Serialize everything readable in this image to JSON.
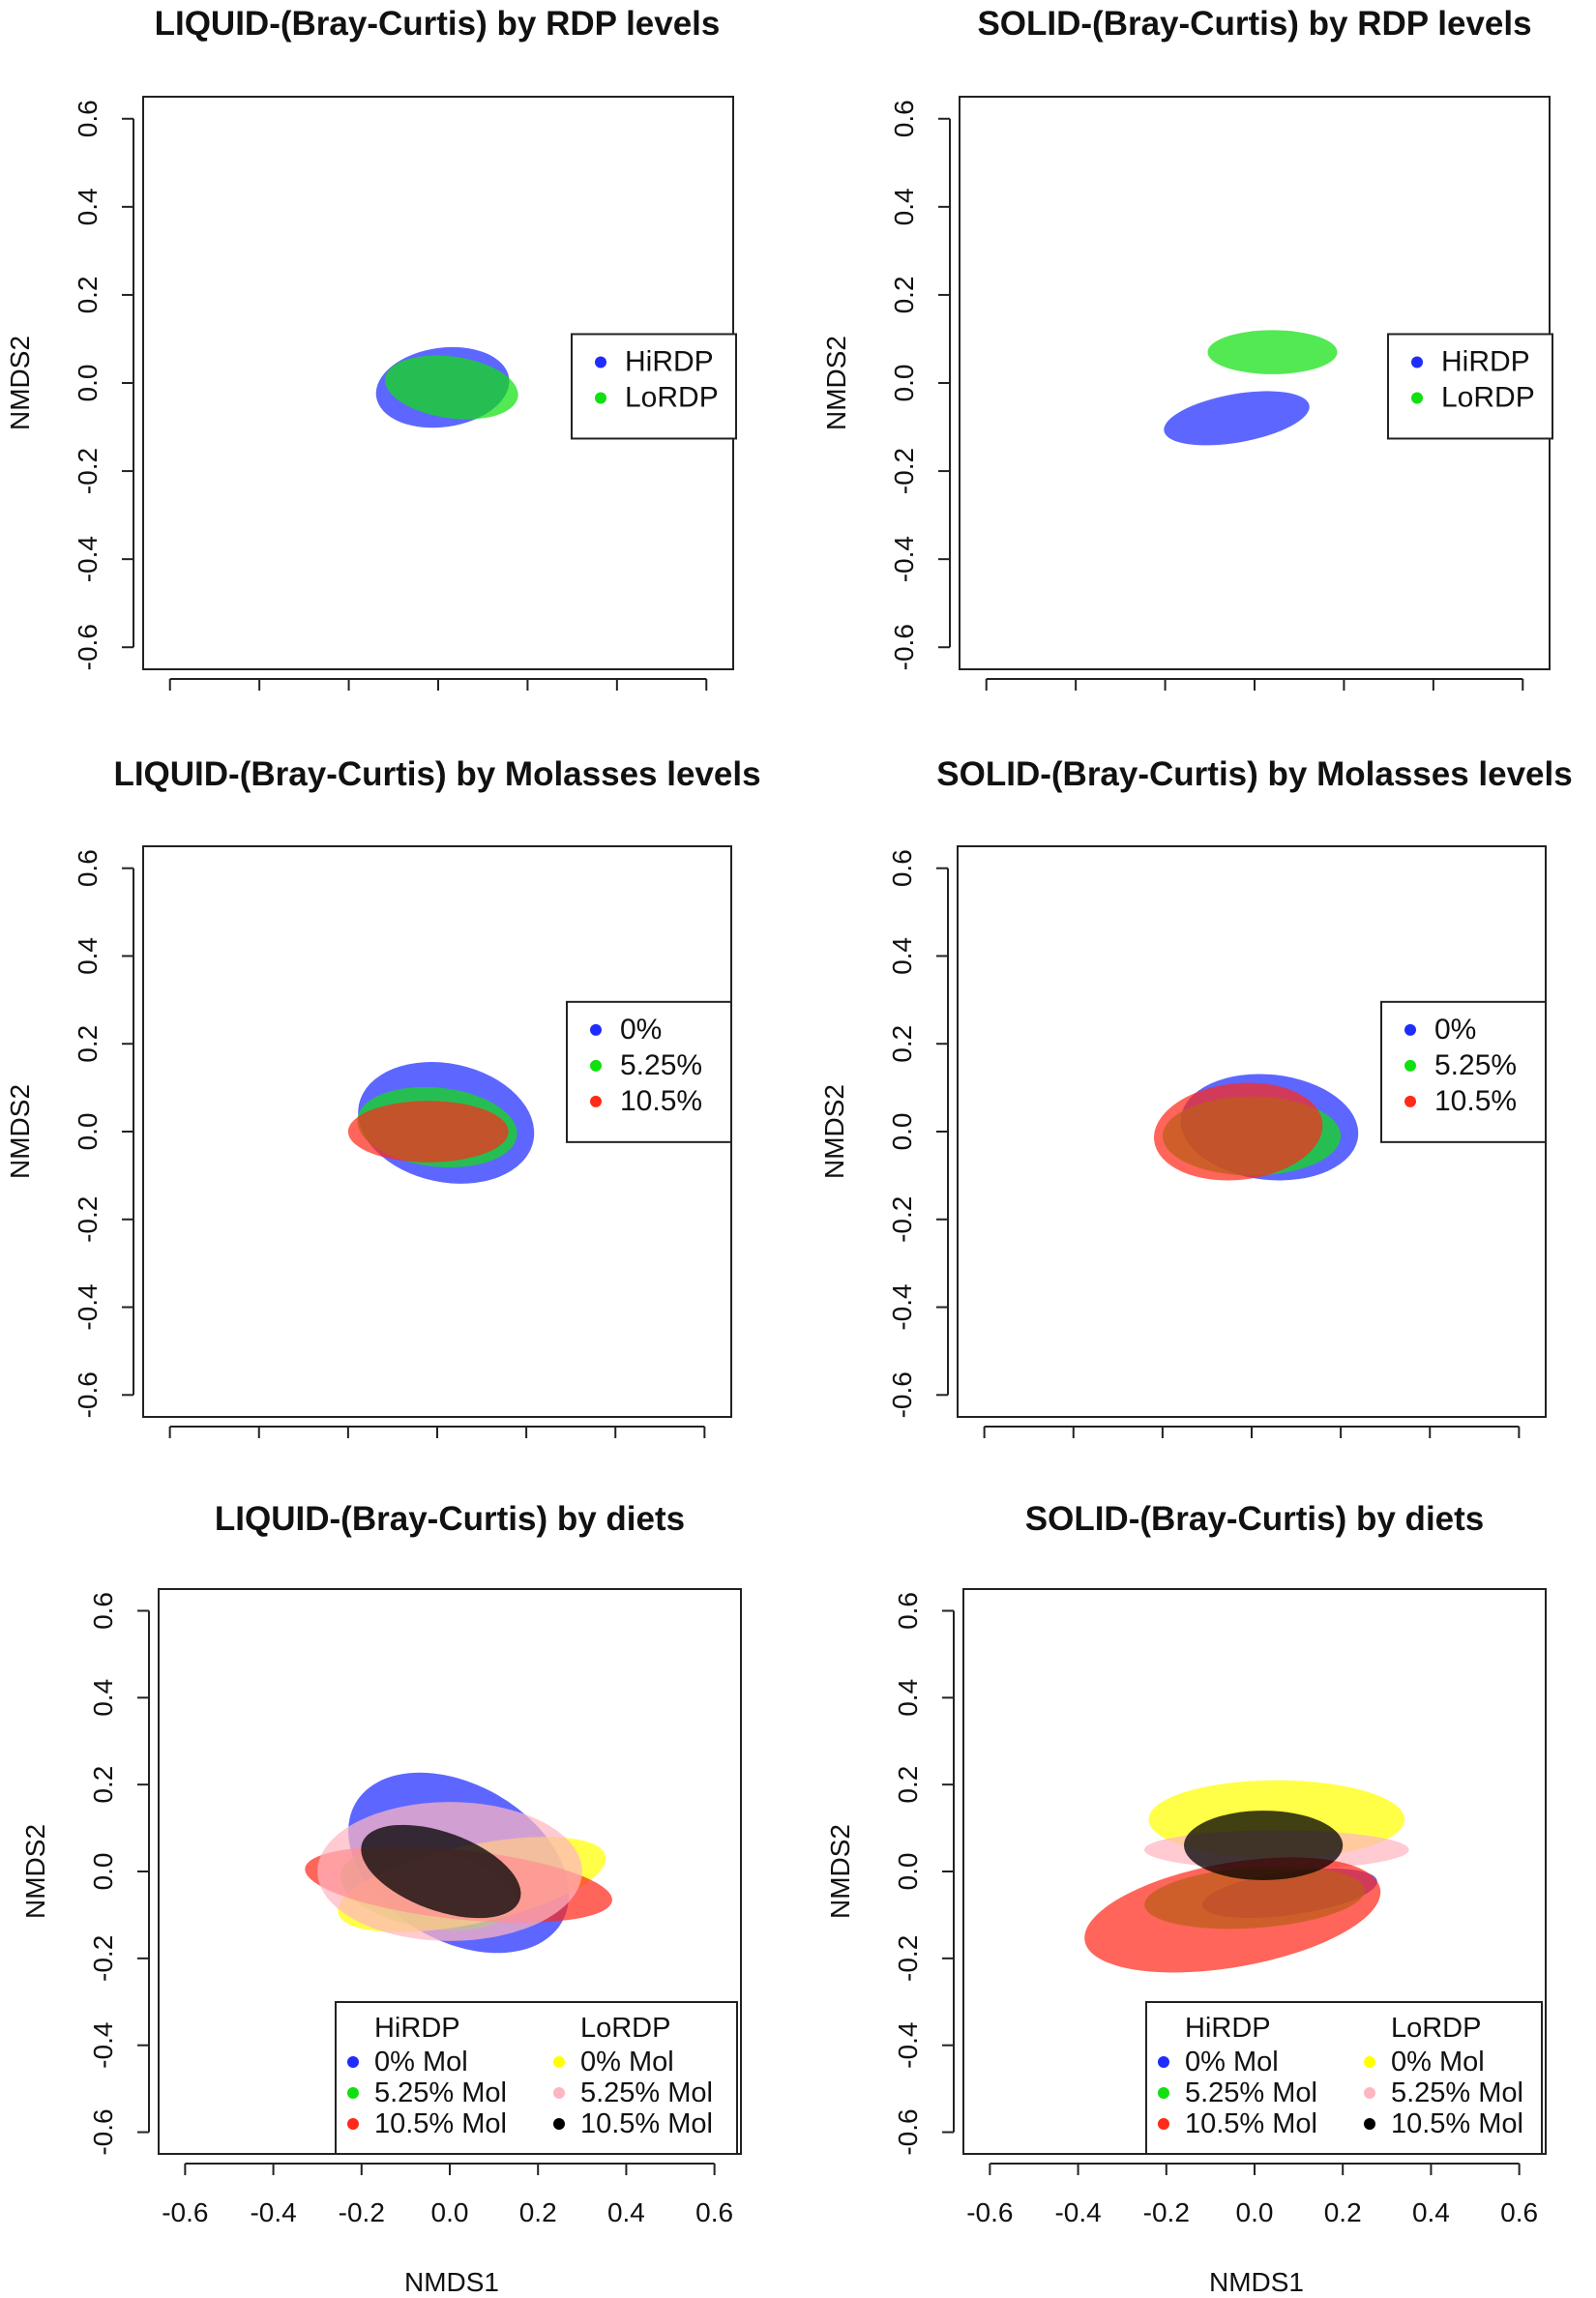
{
  "chart_data": [
    {
      "type": "scatter",
      "title": "LIQUID-(Bray-Curtis) by RDP levels",
      "xlabel": "",
      "ylabel": "NMDS2",
      "xlim": [
        -0.66,
        0.66
      ],
      "ylim": [
        -0.65,
        0.65
      ],
      "xticks": [
        -0.6,
        -0.4,
        -0.2,
        0.0,
        0.2,
        0.4,
        0.6
      ],
      "yticks": [
        "-0.6",
        "-0.4",
        "-0.2",
        "0.0",
        "0.2",
        "0.4",
        "0.6"
      ],
      "show_xtick_labels": false,
      "legend": [
        {
          "label": "HiRDP",
          "color": "#1f2cff"
        },
        {
          "label": "LoRDP",
          "color": "#10e010"
        }
      ],
      "ellipses": [
        {
          "group": "HiRDP",
          "color": "#1f2cff",
          "cx": 0.01,
          "cy": -0.01,
          "rx": 0.15,
          "ry": 0.09,
          "angle": 8
        },
        {
          "group": "LoRDP",
          "color": "#10e010",
          "cx": 0.03,
          "cy": -0.01,
          "rx": 0.15,
          "ry": 0.07,
          "angle": -8
        }
      ]
    },
    {
      "type": "scatter",
      "title": "SOLID-(Bray-Curtis) by RDP levels",
      "xlabel": "",
      "ylabel": "NMDS2",
      "xlim": [
        -0.66,
        0.66
      ],
      "ylim": [
        -0.65,
        0.65
      ],
      "xticks": [
        -0.6,
        -0.4,
        -0.2,
        0.0,
        0.2,
        0.4,
        0.6
      ],
      "yticks": [
        "-0.6",
        "-0.4",
        "-0.2",
        "0.0",
        "0.2",
        "0.4",
        "0.6"
      ],
      "show_xtick_labels": false,
      "legend": [
        {
          "label": "HiRDP",
          "color": "#1f2cff"
        },
        {
          "label": "LoRDP",
          "color": "#10e010"
        }
      ],
      "ellipses": [
        {
          "group": "HiRDP",
          "color": "#1f2cff",
          "cx": -0.04,
          "cy": -0.08,
          "rx": 0.165,
          "ry": 0.055,
          "angle": 10
        },
        {
          "group": "LoRDP",
          "color": "#10e010",
          "cx": 0.04,
          "cy": 0.07,
          "rx": 0.145,
          "ry": 0.05,
          "angle": 0
        }
      ]
    },
    {
      "type": "scatter",
      "title": "LIQUID-(Bray-Curtis) by Molasses levels",
      "xlabel": "",
      "ylabel": "NMDS2",
      "xlim": [
        -0.66,
        0.66
      ],
      "ylim": [
        -0.65,
        0.65
      ],
      "xticks": [
        -0.6,
        -0.4,
        -0.2,
        0.0,
        0.2,
        0.4,
        0.6
      ],
      "yticks": [
        "-0.6",
        "-0.4",
        "-0.2",
        "0.0",
        "0.2",
        "0.4",
        "0.6"
      ],
      "show_xtick_labels": false,
      "legend": [
        {
          "label": "0%",
          "color": "#1f2cff"
        },
        {
          "label": "5.25%",
          "color": "#10e010"
        },
        {
          "label": "10.5%",
          "color": "#ff2a1a"
        }
      ],
      "ellipses": [
        {
          "group": "0%",
          "color": "#1f2cff",
          "cx": 0.02,
          "cy": 0.02,
          "rx": 0.2,
          "ry": 0.135,
          "angle": -12
        },
        {
          "group": "5.25%",
          "color": "#10e010",
          "cx": 0.0,
          "cy": 0.01,
          "rx": 0.18,
          "ry": 0.09,
          "angle": -6
        },
        {
          "group": "10.5%",
          "color": "#ff2a1a",
          "cx": -0.02,
          "cy": 0.0,
          "rx": 0.18,
          "ry": 0.07,
          "angle": 0
        }
      ]
    },
    {
      "type": "scatter",
      "title": "SOLID-(Bray-Curtis) by Molasses levels",
      "xlabel": "",
      "ylabel": "NMDS2",
      "xlim": [
        -0.66,
        0.66
      ],
      "ylim": [
        -0.65,
        0.65
      ],
      "xticks": [
        -0.6,
        -0.4,
        -0.2,
        0.0,
        0.2,
        0.4,
        0.6
      ],
      "yticks": [
        "-0.6",
        "-0.4",
        "-0.2",
        "0.0",
        "0.2",
        "0.4",
        "0.6"
      ],
      "show_xtick_labels": false,
      "legend": [
        {
          "label": "0%",
          "color": "#1f2cff"
        },
        {
          "label": "5.25%",
          "color": "#10e010"
        },
        {
          "label": "10.5%",
          "color": "#ff2a1a"
        }
      ],
      "ellipses": [
        {
          "group": "0%",
          "color": "#1f2cff",
          "cx": 0.04,
          "cy": 0.01,
          "rx": 0.2,
          "ry": 0.12,
          "angle": -6
        },
        {
          "group": "5.25%",
          "color": "#10e010",
          "cx": 0.0,
          "cy": -0.01,
          "rx": 0.2,
          "ry": 0.09,
          "angle": 0
        },
        {
          "group": "10.5%",
          "color": "#ff2a1a",
          "cx": -0.03,
          "cy": 0.0,
          "rx": 0.19,
          "ry": 0.11,
          "angle": 6
        }
      ]
    },
    {
      "type": "scatter",
      "title": "LIQUID-(Bray-Curtis) by diets",
      "xlabel": "NMDS1",
      "ylabel": "NMDS2",
      "xlim": [
        -0.66,
        0.66
      ],
      "ylim": [
        -0.65,
        0.65
      ],
      "xticks": [
        -0.6,
        -0.4,
        -0.2,
        0.0,
        0.2,
        0.4,
        0.6
      ],
      "xtick_labels": [
        "-0.6",
        "-0.4",
        "-0.2",
        "0.0",
        "0.2",
        "0.4",
        "0.6"
      ],
      "yticks": [
        "-0.6",
        "-0.4",
        "-0.2",
        "0.0",
        "0.2",
        "0.4",
        "0.6"
      ],
      "show_xtick_labels": true,
      "legend_headers": [
        "HiRDP",
        "LoRDP"
      ],
      "legend": [
        {
          "label": "0% Mol",
          "color": "#1f2cff",
          "col": 0
        },
        {
          "label": "5.25% Mol",
          "color": "#10e010",
          "col": 0
        },
        {
          "label": "10.5% Mol",
          "color": "#ff2a1a",
          "col": 0
        },
        {
          "label": "0% Mol",
          "color": "#ffff00",
          "col": 1
        },
        {
          "label": "5.25% Mol",
          "color": "#ffb6c1",
          "col": 1
        },
        {
          "label": "10.5% Mol",
          "color": "#000000",
          "col": 1
        }
      ],
      "ellipses": [
        {
          "group": "HiRDP 0% Mol",
          "color": "#1f2cff",
          "cx": 0.02,
          "cy": 0.02,
          "rx": 0.27,
          "ry": 0.18,
          "angle": -30
        },
        {
          "group": "HiRDP 5.25% Mol",
          "color": "#10e010",
          "cx": -0.05,
          "cy": -0.04,
          "rx": 0.2,
          "ry": 0.09,
          "angle": -10
        },
        {
          "group": "LoRDP 0% Mol",
          "color": "#ffff00",
          "cx": 0.05,
          "cy": -0.03,
          "rx": 0.31,
          "ry": 0.09,
          "angle": 12
        },
        {
          "group": "HiRDP 10.5% Mol",
          "color": "#ff2a1a",
          "cx": 0.02,
          "cy": -0.03,
          "rx": 0.35,
          "ry": 0.08,
          "angle": -6
        },
        {
          "group": "LoRDP 5.25% Mol",
          "color": "#ffb6c1",
          "cx": 0.0,
          "cy": 0.0,
          "rx": 0.3,
          "ry": 0.16,
          "angle": 0
        },
        {
          "group": "LoRDP 10.5% Mol",
          "color": "#000000",
          "cx": -0.02,
          "cy": 0.0,
          "rx": 0.19,
          "ry": 0.09,
          "angle": -20
        }
      ]
    },
    {
      "type": "scatter",
      "title": "SOLID-(Bray-Curtis) by diets",
      "xlabel": "NMDS1",
      "ylabel": "NMDS2",
      "xlim": [
        -0.66,
        0.66
      ],
      "ylim": [
        -0.65,
        0.65
      ],
      "xticks": [
        -0.6,
        -0.4,
        -0.2,
        0.0,
        0.2,
        0.4,
        0.6
      ],
      "xtick_labels": [
        "-0.6",
        "-0.4",
        "-0.2",
        "0.0",
        "0.2",
        "0.4",
        "0.6"
      ],
      "yticks": [
        "-0.6",
        "-0.4",
        "-0.2",
        "0.0",
        "0.2",
        "0.4",
        "0.6"
      ],
      "show_xtick_labels": true,
      "legend_headers": [
        "HiRDP",
        "LoRDP"
      ],
      "legend": [
        {
          "label": "0% Mol",
          "color": "#1f2cff",
          "col": 0
        },
        {
          "label": "5.25% Mol",
          "color": "#10e010",
          "col": 0
        },
        {
          "label": "10.5% Mol",
          "color": "#ff2a1a",
          "col": 0
        },
        {
          "label": "0% Mol",
          "color": "#ffff00",
          "col": 1
        },
        {
          "label": "5.25% Mol",
          "color": "#ffb6c1",
          "col": 1
        },
        {
          "label": "10.5% Mol",
          "color": "#000000",
          "col": 1
        }
      ],
      "ellipses": [
        {
          "group": "HiRDP 0% Mol",
          "color": "#1f2cff",
          "cx": 0.08,
          "cy": -0.05,
          "rx": 0.2,
          "ry": 0.05,
          "angle": 8
        },
        {
          "group": "LoRDP 0% Mol",
          "color": "#ffff00",
          "cx": 0.05,
          "cy": 0.12,
          "rx": 0.29,
          "ry": 0.09,
          "angle": 0
        },
        {
          "group": "HiRDP 5.25% Mol",
          "color": "#10e010",
          "cx": 0.0,
          "cy": -0.06,
          "rx": 0.25,
          "ry": 0.07,
          "angle": 4
        },
        {
          "group": "LoRDP 5.25% Mol",
          "color": "#ffb6c1",
          "cx": 0.05,
          "cy": 0.05,
          "rx": 0.3,
          "ry": 0.045,
          "angle": 0
        },
        {
          "group": "HiRDP 10.5% Mol",
          "color": "#ff2a1a",
          "cx": -0.05,
          "cy": -0.1,
          "rx": 0.34,
          "ry": 0.12,
          "angle": 10
        },
        {
          "group": "LoRDP 10.5% Mol",
          "color": "#000000",
          "cx": 0.02,
          "cy": 0.06,
          "rx": 0.18,
          "ry": 0.08,
          "angle": 0
        }
      ]
    }
  ]
}
